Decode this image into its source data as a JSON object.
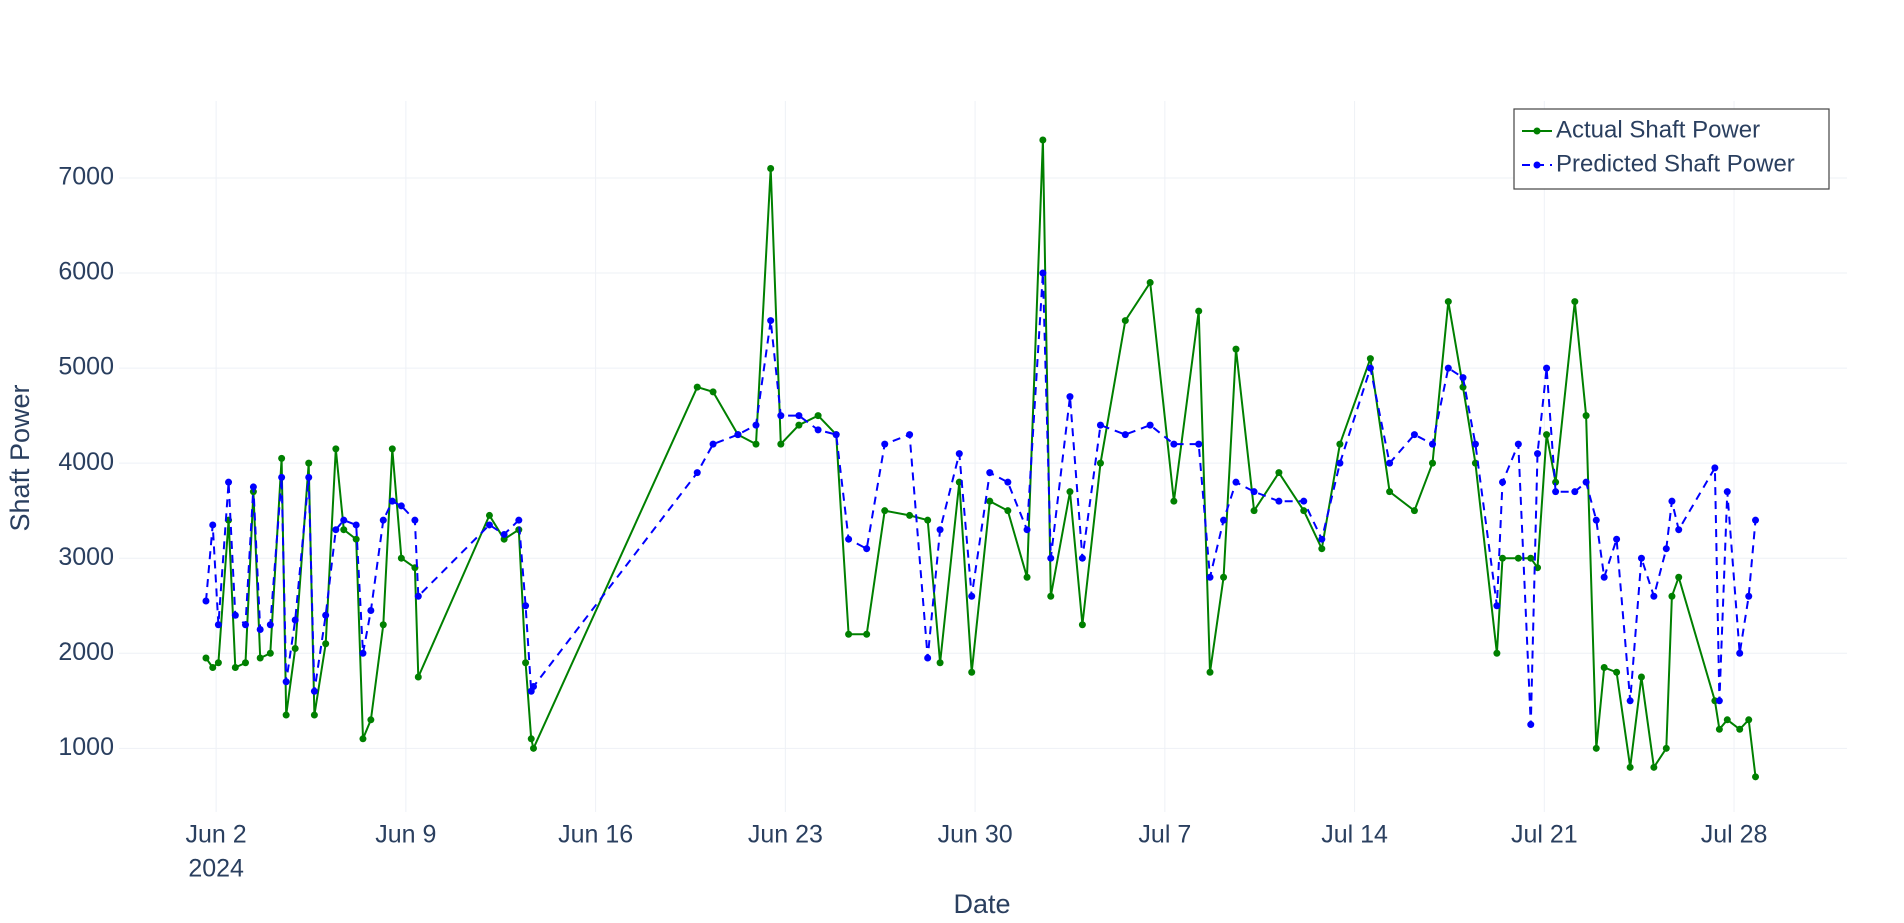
{
  "chart_data": {
    "type": "line",
    "xlabel": "Date",
    "ylabel": "Shaft Power",
    "grid": true,
    "legend": "top-right",
    "xlim": [
      "2024-05-29 10:00",
      "2024-08-01 04:00"
    ],
    "xticks": [
      {
        "value": "2024-06-02 00:00",
        "label": "Jun 2"
      },
      {
        "value": "2024-06-09 00:00",
        "label": "Jun 9"
      },
      {
        "value": "2024-06-16 00:00",
        "label": "Jun 16"
      },
      {
        "value": "2024-06-23 00:00",
        "label": "Jun 23"
      },
      {
        "value": "2024-06-30 00:00",
        "label": "Jun 30"
      },
      {
        "value": "2024-07-07 00:00",
        "label": "Jul 7"
      },
      {
        "value": "2024-07-14 00:00",
        "label": "Jul 14"
      },
      {
        "value": "2024-07-21 00:00",
        "label": "Jul 21"
      },
      {
        "value": "2024-07-28 00:00",
        "label": "Jul 28"
      }
    ],
    "xtick_year": "2024",
    "ylim": [
      330,
      7810
    ],
    "yticks": [
      1000,
      2000,
      3000,
      4000,
      5000,
      6000,
      7000
    ],
    "x": [
      "2024-06-01 15:00",
      "2024-06-01 21:00",
      "2024-06-02 02:00",
      "2024-06-02 11:00",
      "2024-06-02 17:00",
      "2024-06-03 02:00",
      "2024-06-03 09:00",
      "2024-06-03 15:00",
      "2024-06-04 00:00",
      "2024-06-04 10:00",
      "2024-06-04 14:00",
      "2024-06-04 22:00",
      "2024-06-05 10:00",
      "2024-06-05 15:00",
      "2024-06-06 01:00",
      "2024-06-06 10:00",
      "2024-06-06 17:00",
      "2024-06-07 04:00",
      "2024-06-07 10:00",
      "2024-06-07 17:00",
      "2024-06-08 04:00",
      "2024-06-08 12:00",
      "2024-06-08 20:00",
      "2024-06-09 08:00",
      "2024-06-09 11:00",
      "2024-06-12 02:00",
      "2024-06-12 15:00",
      "2024-06-13 04:00",
      "2024-06-13 10:00",
      "2024-06-13 15:00",
      "2024-06-13 17:00",
      "2024-06-19 18:00",
      "2024-06-20 08:00",
      "2024-06-21 06:00",
      "2024-06-21 22:00",
      "2024-06-22 11:00",
      "2024-06-22 20:00",
      "2024-06-23 12:00",
      "2024-06-24 05:00",
      "2024-06-24 21:00",
      "2024-06-25 08:00",
      "2024-06-26 00:00",
      "2024-06-26 16:00",
      "2024-06-27 14:00",
      "2024-06-28 06:00",
      "2024-06-28 17:00",
      "2024-06-29 10:00",
      "2024-06-29 21:00",
      "2024-06-30 13:00",
      "2024-07-01 05:00",
      "2024-07-01 22:00",
      "2024-07-02 12:00",
      "2024-07-02 19:00",
      "2024-07-03 12:00",
      "2024-07-03 23:00",
      "2024-07-04 15:00",
      "2024-07-05 13:00",
      "2024-07-06 11:00",
      "2024-07-07 08:00",
      "2024-07-08 06:00",
      "2024-07-08 16:00",
      "2024-07-09 04:00",
      "2024-07-09 15:00",
      "2024-07-10 07:00",
      "2024-07-11 05:00",
      "2024-07-12 03:00",
      "2024-07-12 19:00",
      "2024-07-13 11:00",
      "2024-07-14 14:00",
      "2024-07-15 07:00",
      "2024-07-16 05:00",
      "2024-07-16 21:00",
      "2024-07-17 11:00",
      "2024-07-18 00:00",
      "2024-07-18 11:00",
      "2024-07-19 06:00",
      "2024-07-19 11:00",
      "2024-07-20 01:00",
      "2024-07-20 12:00",
      "2024-07-20 18:00",
      "2024-07-21 02:00",
      "2024-07-21 10:00",
      "2024-07-22 03:00",
      "2024-07-22 13:00",
      "2024-07-22 22:00",
      "2024-07-23 05:00",
      "2024-07-23 16:00",
      "2024-07-24 04:00",
      "2024-07-24 14:00",
      "2024-07-25 01:00",
      "2024-07-25 12:00",
      "2024-07-25 17:00",
      "2024-07-25 23:00",
      "2024-07-27 07:00",
      "2024-07-27 11:00",
      "2024-07-27 18:00",
      "2024-07-28 05:00",
      "2024-07-28 13:00",
      "2024-07-28 19:00"
    ],
    "series": [
      {
        "name": "Actual Shaft Power",
        "color": "#008000",
        "dash": "solid",
        "values": [
          1950,
          1850,
          1900,
          3400,
          1850,
          1900,
          3700,
          1950,
          2000,
          4050,
          1350,
          2050,
          4000,
          1350,
          2100,
          4150,
          3300,
          3200,
          1100,
          1300,
          2300,
          4150,
          3000,
          2900,
          1750,
          3450,
          3200,
          3300,
          1900,
          1100,
          1000,
          4800,
          4750,
          4300,
          4200,
          7100,
          4200,
          4400,
          4500,
          4300,
          2200,
          2200,
          3500,
          3450,
          3400,
          1900,
          3800,
          1800,
          3600,
          3500,
          2800,
          7400,
          2600,
          3700,
          2300,
          4000,
          5500,
          5900,
          3600,
          5600,
          1800,
          2800,
          5200,
          3500,
          3900,
          3500,
          3100,
          4200,
          5100,
          3700,
          3500,
          4000,
          5700,
          4800,
          4000,
          2000,
          3000,
          3000,
          3000,
          2900,
          4300,
          3800,
          5700,
          4500,
          1000,
          1850,
          1800,
          800,
          1750,
          800,
          1000,
          2600,
          2800,
          1500,
          1200,
          1300,
          1200,
          1300,
          700
        ]
      },
      {
        "name": "Predicted Shaft Power",
        "color": "#0000ff",
        "dash": "dash",
        "values": [
          2550,
          3350,
          2300,
          3800,
          2400,
          2300,
          3750,
          2250,
          2300,
          3850,
          1700,
          2350,
          3850,
          1600,
          2400,
          3300,
          3400,
          3350,
          2000,
          2450,
          3400,
          3600,
          3550,
          3400,
          2600,
          3350,
          3250,
          3400,
          2500,
          1600,
          1650,
          3900,
          4200,
          4300,
          4400,
          5500,
          4500,
          4500,
          4350,
          4300,
          3200,
          3100,
          4200,
          4300,
          1950,
          3300,
          4100,
          2600,
          3900,
          3800,
          3300,
          6000,
          3000,
          4700,
          3000,
          4400,
          4300,
          4400,
          4200,
          4200,
          2800,
          3400,
          3800,
          3700,
          3600,
          3600,
          3200,
          4000,
          5000,
          4000,
          4300,
          4200,
          5000,
          4900,
          4200,
          2500,
          3800,
          4200,
          1250,
          4100,
          5000,
          3700,
          3700,
          3800,
          3400,
          2800,
          3200,
          1500,
          3000,
          2600,
          3100,
          3600,
          3300,
          3950,
          1500,
          3700,
          2000,
          2600,
          3400
        ]
      }
    ]
  }
}
